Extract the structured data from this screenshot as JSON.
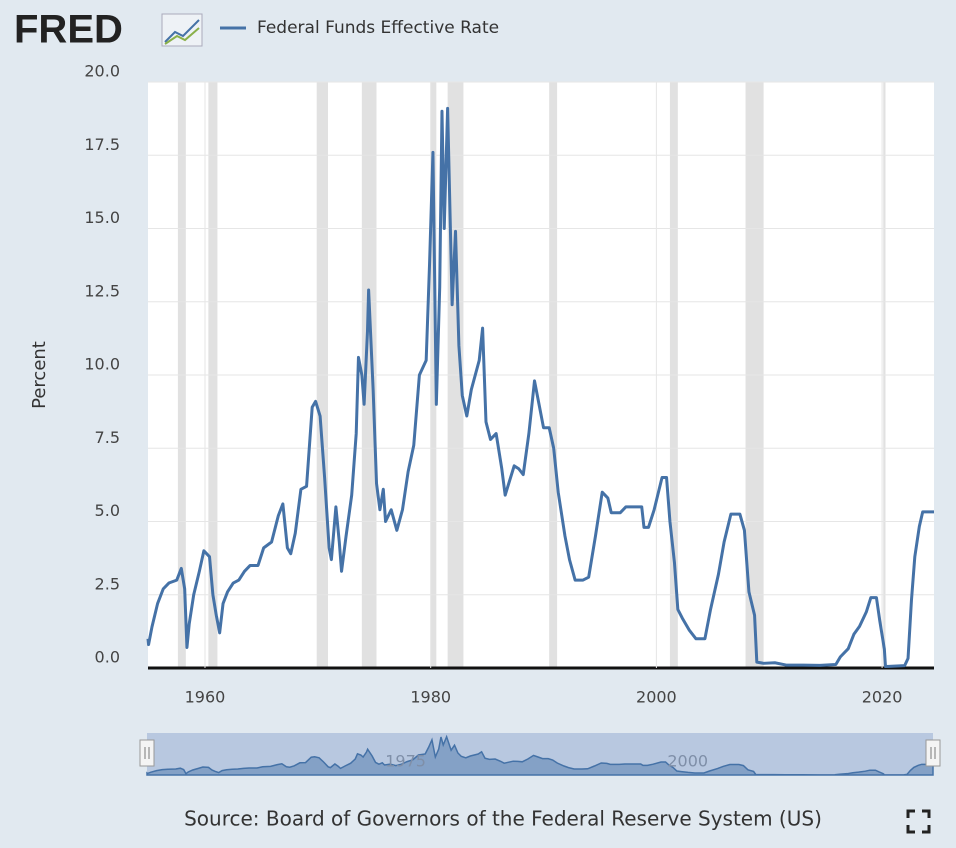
{
  "logo": "FRED",
  "chart_data": {
    "type": "line",
    "y_label": "Percent",
    "source": "Source: Board of Governors of the Federal Reserve System (US)",
    "xlim": [
      1954.95,
      2024.6
    ],
    "xticks": [
      1960,
      1980,
      2000,
      2020
    ],
    "ylim": [
      0,
      20
    ],
    "yticks": [
      {
        "value": 0,
        "label": "0.0"
      },
      2.5,
      {
        "value": 5,
        "label": "5.0"
      },
      7.5,
      {
        "value": 10,
        "label": "10.0"
      },
      12.5,
      {
        "value": 15,
        "label": "15.0"
      },
      17.5,
      {
        "value": 20,
        "label": "20.0"
      }
    ],
    "grid": true,
    "recessions": [
      [
        1957.6,
        1958.3
      ],
      [
        1960.3,
        1961.1
      ],
      [
        1969.9,
        1970.9
      ],
      [
        1973.9,
        1975.2
      ],
      [
        1980.0,
        1980.5
      ],
      [
        1981.5,
        1982.9
      ],
      [
        1990.5,
        1991.2
      ],
      [
        2001.2,
        2001.9
      ],
      [
        2007.9,
        2009.5
      ],
      [
        2020.1,
        2020.3
      ]
    ],
    "navigator_xticks": [
      1975,
      2000
    ],
    "x": [
      1954.95,
      1955.0,
      1955.3,
      1955.8,
      1956.3,
      1956.8,
      1957.5,
      1957.9,
      1958.2,
      1958.4,
      1958.6,
      1959.0,
      1959.5,
      1959.9,
      1960.4,
      1960.7,
      1961.0,
      1961.3,
      1961.6,
      1962.0,
      1962.5,
      1963.0,
      1963.5,
      1964.0,
      1964.7,
      1965.2,
      1965.9,
      1966.5,
      1966.9,
      1967.3,
      1967.6,
      1968.0,
      1968.5,
      1969.0,
      1969.5,
      1969.8,
      1970.2,
      1970.6,
      1971.0,
      1971.2,
      1971.6,
      1971.9,
      1972.1,
      1972.5,
      1973.0,
      1973.4,
      1973.6,
      1973.9,
      1974.1,
      1974.4,
      1974.5,
      1974.9,
      1975.2,
      1975.5,
      1975.8,
      1976.0,
      1976.5,
      1977.0,
      1977.5,
      1978.0,
      1978.5,
      1979.0,
      1979.6,
      1979.9,
      1980.2,
      1980.5,
      1980.8,
      1981.0,
      1981.2,
      1981.5,
      1981.9,
      1982.2,
      1982.5,
      1982.8,
      1983.2,
      1983.6,
      1984.3,
      1984.6,
      1984.9,
      1985.3,
      1985.8,
      1986.3,
      1986.6,
      1987.0,
      1987.4,
      1987.8,
      1988.2,
      1988.7,
      1989.2,
      1989.6,
      1990.0,
      1990.5,
      1990.9,
      1991.3,
      1991.9,
      1992.3,
      1992.8,
      1993.5,
      1994.0,
      1994.6,
      1995.2,
      1995.7,
      1996.0,
      1996.8,
      1997.3,
      1998.0,
      1998.7,
      1998.9,
      1999.3,
      1999.8,
      2000.5,
      2000.9,
      2001.2,
      2001.6,
      2001.9,
      2002.3,
      2002.9,
      2003.5,
      2004.3,
      2004.8,
      2005.5,
      2006.0,
      2006.6,
      2007.4,
      2007.8,
      2008.2,
      2008.7,
      2008.9,
      2009.5,
      2010.5,
      2011.5,
      2013.0,
      2014.5,
      2015.9,
      2016.3,
      2017.0,
      2017.5,
      2018.0,
      2018.6,
      2019.0,
      2019.5,
      2019.8,
      2020.2,
      2020.3,
      2022.0,
      2022.3,
      2022.6,
      2022.9,
      2023.3,
      2023.6,
      2024.6
    ],
    "series": [
      {
        "name": "Federal Funds Effective Rate",
        "color": "#4572a7",
        "values": [
          1.0,
          0.8,
          1.4,
          2.2,
          2.7,
          2.9,
          3.0,
          3.4,
          2.7,
          0.7,
          1.5,
          2.5,
          3.3,
          4.0,
          3.8,
          2.5,
          1.8,
          1.2,
          2.2,
          2.6,
          2.9,
          3.0,
          3.3,
          3.5,
          3.5,
          4.1,
          4.3,
          5.2,
          5.6,
          4.1,
          3.9,
          4.6,
          6.1,
          6.2,
          8.9,
          9.1,
          8.6,
          6.5,
          4.1,
          3.7,
          5.5,
          4.3,
          3.3,
          4.5,
          5.9,
          8.0,
          10.6,
          10.0,
          9.0,
          11.5,
          12.9,
          9.5,
          6.3,
          5.4,
          6.1,
          5.0,
          5.4,
          4.7,
          5.4,
          6.7,
          7.6,
          10.0,
          10.5,
          13.8,
          17.6,
          9.0,
          13.0,
          19.0,
          15.0,
          19.1,
          12.4,
          14.9,
          11.0,
          9.3,
          8.6,
          9.5,
          10.5,
          11.6,
          8.4,
          7.8,
          8.0,
          6.8,
          5.9,
          6.4,
          6.9,
          6.8,
          6.6,
          8.0,
          9.8,
          9.0,
          8.2,
          8.2,
          7.5,
          6.0,
          4.5,
          3.7,
          3.0,
          3.0,
          3.1,
          4.5,
          6.0,
          5.8,
          5.3,
          5.3,
          5.5,
          5.5,
          5.5,
          4.8,
          4.8,
          5.4,
          6.5,
          6.5,
          5.0,
          3.6,
          2.0,
          1.7,
          1.3,
          1.0,
          1.0,
          2.0,
          3.2,
          4.3,
          5.25,
          5.25,
          4.7,
          2.6,
          1.8,
          0.2,
          0.16,
          0.18,
          0.1,
          0.1,
          0.09,
          0.12,
          0.38,
          0.66,
          1.15,
          1.42,
          1.91,
          2.4,
          2.4,
          1.6,
          0.65,
          0.05,
          0.08,
          0.33,
          2.3,
          3.8,
          4.83,
          5.33,
          5.33
        ]
      }
    ]
  }
}
